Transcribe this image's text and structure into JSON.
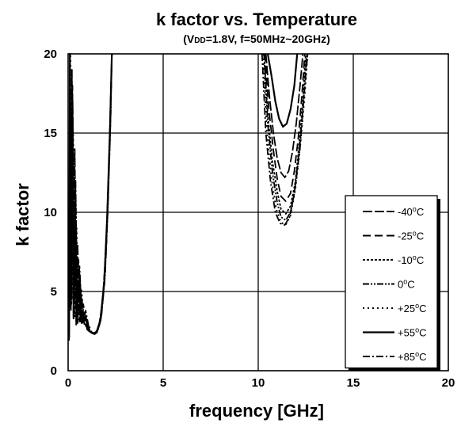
{
  "chart_data": {
    "type": "line",
    "title": "k factor vs. Temperature",
    "subtitle": {
      "prefix": "(V",
      "subscript": "DD",
      "suffix": "=1.8V, f=50MHz~20GHz)"
    },
    "xlabel": "frequency [GHz]",
    "ylabel": "k factor",
    "xlim": [
      0,
      20
    ],
    "ylim": [
      0,
      20
    ],
    "xticks": [
      "0",
      "5",
      "10",
      "15",
      "20"
    ],
    "yticks": [
      "0",
      "5",
      "10",
      "15",
      "20"
    ],
    "grid": true,
    "legend_position": "right-middle",
    "series": [
      {
        "name": "-40°C",
        "label": "-40",
        "unit": "oC",
        "dash": "12,3",
        "segments": [
          [
            [
              0.05,
              2.6
            ],
            [
              0.1,
              20
            ],
            [
              0.15,
              3.8
            ],
            [
              0.2,
              19
            ],
            [
              0.28,
              3.3
            ],
            [
              0.35,
              14
            ],
            [
              0.42,
              2.9
            ],
            [
              0.5,
              8
            ],
            [
              0.6,
              3.1
            ],
            [
              0.7,
              4.8
            ],
            [
              0.85,
              3.0
            ],
            [
              1.0,
              2.7
            ],
            [
              1.2,
              2.45
            ],
            [
              1.4,
              2.35
            ],
            [
              1.6,
              2.7
            ],
            [
              1.8,
              4.2
            ],
            [
              2.0,
              7.8
            ],
            [
              2.15,
              13
            ],
            [
              2.3,
              20
            ]
          ],
          [
            [
              10.4,
              20
            ],
            [
              10.6,
              17.2
            ],
            [
              10.8,
              15.0
            ],
            [
              11.0,
              13.4
            ],
            [
              11.2,
              12.5
            ],
            [
              11.4,
              12.2
            ],
            [
              11.6,
              12.6
            ],
            [
              11.8,
              13.8
            ],
            [
              12.0,
              15.6
            ],
            [
              12.2,
              18.0
            ],
            [
              12.35,
              20
            ]
          ]
        ]
      },
      {
        "name": "-25°C",
        "label": "-25",
        "unit": "oC",
        "dash": "10,5",
        "segments": [
          [
            [
              0.05,
              2.3
            ],
            [
              0.12,
              19
            ],
            [
              0.18,
              4.4
            ],
            [
              0.24,
              17
            ],
            [
              0.3,
              3.6
            ],
            [
              0.38,
              12
            ],
            [
              0.45,
              3.2
            ],
            [
              0.55,
              7
            ],
            [
              0.65,
              3.0
            ],
            [
              0.8,
              4.2
            ],
            [
              1.0,
              2.6
            ],
            [
              1.2,
              2.4
            ],
            [
              1.4,
              2.3
            ],
            [
              1.6,
              2.65
            ],
            [
              1.8,
              4.1
            ],
            [
              2.0,
              7.6
            ],
            [
              2.15,
              12.8
            ],
            [
              2.3,
              20
            ]
          ],
          [
            [
              10.35,
              20
            ],
            [
              10.55,
              16.6
            ],
            [
              10.8,
              13.9
            ],
            [
              11.0,
              12.1
            ],
            [
              11.2,
              11.0
            ],
            [
              11.45,
              10.7
            ],
            [
              11.7,
              11.2
            ],
            [
              11.9,
              12.6
            ],
            [
              12.1,
              14.6
            ],
            [
              12.3,
              17.4
            ],
            [
              12.45,
              20
            ]
          ]
        ]
      },
      {
        "name": "-10°C",
        "label": "-10",
        "unit": "oC",
        "dash": "3,2",
        "segments": [
          [
            [
              0.05,
              3.0
            ],
            [
              0.1,
              17
            ],
            [
              0.16,
              5.0
            ],
            [
              0.22,
              18
            ],
            [
              0.3,
              4.0
            ],
            [
              0.4,
              11
            ],
            [
              0.5,
              3.4
            ],
            [
              0.6,
              6.2
            ],
            [
              0.75,
              3.2
            ],
            [
              0.9,
              3.6
            ],
            [
              1.1,
              2.55
            ],
            [
              1.3,
              2.35
            ],
            [
              1.5,
              2.4
            ],
            [
              1.7,
              3.1
            ],
            [
              1.9,
              5.4
            ],
            [
              2.05,
              9.3
            ],
            [
              2.2,
              15
            ],
            [
              2.3,
              20
            ]
          ],
          [
            [
              10.3,
              20
            ],
            [
              10.5,
              16.2
            ],
            [
              10.75,
              13.2
            ],
            [
              11.0,
              11.3
            ],
            [
              11.2,
              10.2
            ],
            [
              11.45,
              9.9
            ],
            [
              11.7,
              10.4
            ],
            [
              11.95,
              11.9
            ],
            [
              12.15,
              14.2
            ],
            [
              12.35,
              17.1
            ],
            [
              12.5,
              20
            ]
          ]
        ]
      },
      {
        "name": "0°C",
        "label": "0",
        "unit": "oC",
        "dash": "8,2,2,2,2,2",
        "segments": [
          [
            [
              0.05,
              1.9
            ],
            [
              0.11,
              18
            ],
            [
              0.17,
              4.2
            ],
            [
              0.25,
              16
            ],
            [
              0.32,
              3.5
            ],
            [
              0.4,
              9.5
            ],
            [
              0.5,
              3.0
            ],
            [
              0.62,
              5.6
            ],
            [
              0.78,
              3.0
            ],
            [
              0.95,
              3.3
            ],
            [
              1.15,
              2.5
            ],
            [
              1.35,
              2.35
            ],
            [
              1.55,
              2.5
            ],
            [
              1.75,
              3.4
            ],
            [
              1.95,
              6.1
            ],
            [
              2.1,
              10.5
            ],
            [
              2.25,
              16.5
            ],
            [
              2.3,
              20
            ]
          ],
          [
            [
              10.3,
              20
            ],
            [
              10.5,
              15.6
            ],
            [
              10.75,
              12.5
            ],
            [
              11.0,
              10.6
            ],
            [
              11.2,
              9.7
            ],
            [
              11.45,
              9.5
            ],
            [
              11.7,
              10.0
            ],
            [
              11.95,
              11.6
            ],
            [
              12.2,
              14.1
            ],
            [
              12.4,
              17.3
            ],
            [
              12.55,
              20
            ]
          ]
        ]
      },
      {
        "name": "+25°C",
        "label": "+25",
        "unit": "oC",
        "dash": "2,4",
        "segments": [
          [
            [
              0.05,
              2.4
            ],
            [
              0.13,
              20
            ],
            [
              0.19,
              4.6
            ],
            [
              0.27,
              15
            ],
            [
              0.35,
              3.4
            ],
            [
              0.45,
              9
            ],
            [
              0.55,
              3.1
            ],
            [
              0.7,
              5.2
            ],
            [
              0.85,
              2.9
            ],
            [
              1.05,
              3.0
            ],
            [
              1.25,
              2.4
            ],
            [
              1.45,
              2.35
            ],
            [
              1.65,
              2.9
            ],
            [
              1.85,
              4.8
            ],
            [
              2.0,
              8.2
            ],
            [
              2.2,
              14.5
            ],
            [
              2.3,
              20
            ]
          ],
          [
            [
              10.25,
              20
            ],
            [
              10.45,
              15.2
            ],
            [
              10.7,
              12.1
            ],
            [
              10.95,
              10.2
            ],
            [
              11.2,
              9.35
            ],
            [
              11.45,
              9.2
            ],
            [
              11.7,
              9.8
            ],
            [
              11.95,
              11.4
            ],
            [
              12.2,
              14.0
            ],
            [
              12.45,
              17.4
            ],
            [
              12.6,
              20
            ]
          ]
        ]
      },
      {
        "name": "+55°C",
        "label": "+55",
        "unit": "oC",
        "dash": "",
        "segments": [
          [
            [
              0.05,
              2.1
            ],
            [
              0.09,
              20
            ],
            [
              0.14,
              4.0
            ],
            [
              0.21,
              16
            ],
            [
              0.29,
              3.3
            ],
            [
              0.37,
              10
            ],
            [
              0.46,
              3.0
            ],
            [
              0.58,
              5.8
            ],
            [
              0.72,
              3.0
            ],
            [
              0.9,
              3.4
            ],
            [
              1.1,
              2.5
            ],
            [
              1.3,
              2.35
            ],
            [
              1.5,
              2.45
            ],
            [
              1.7,
              3.2
            ],
            [
              1.9,
              5.6
            ],
            [
              2.05,
              9.6
            ],
            [
              2.2,
              15.2
            ],
            [
              2.3,
              20
            ]
          ],
          [
            [
              10.5,
              20
            ],
            [
              10.7,
              18.6
            ],
            [
              10.9,
              17.0
            ],
            [
              11.1,
              15.9
            ],
            [
              11.3,
              15.4
            ],
            [
              11.5,
              15.6
            ],
            [
              11.7,
              16.5
            ],
            [
              11.9,
              18.0
            ],
            [
              12.05,
              20
            ]
          ]
        ]
      },
      {
        "name": "+85°C",
        "label": "+85",
        "unit": "oC",
        "dash": "9,3,2,3",
        "segments": [
          [
            [
              0.05,
              2.7
            ],
            [
              0.1,
              19
            ],
            [
              0.15,
              4.8
            ],
            [
              0.23,
              18
            ],
            [
              0.31,
              3.7
            ],
            [
              0.39,
              12
            ],
            [
              0.48,
              3.2
            ],
            [
              0.6,
              6.6
            ],
            [
              0.74,
              3.1
            ],
            [
              0.92,
              3.8
            ],
            [
              1.12,
              2.55
            ],
            [
              1.32,
              2.35
            ],
            [
              1.52,
              2.4
            ],
            [
              1.72,
              3.2
            ],
            [
              1.92,
              5.6
            ],
            [
              2.08,
              9.9
            ],
            [
              2.22,
              15.6
            ],
            [
              2.3,
              20
            ]
          ],
          [
            [
              10.2,
              20
            ],
            [
              10.4,
              15.0
            ],
            [
              10.65,
              11.9
            ],
            [
              10.9,
              10.0
            ],
            [
              11.15,
              9.3
            ],
            [
              11.4,
              9.2
            ],
            [
              11.65,
              9.7
            ],
            [
              11.9,
              11.2
            ],
            [
              12.15,
              13.8
            ],
            [
              12.4,
              17.2
            ],
            [
              12.6,
              20
            ]
          ]
        ]
      }
    ]
  }
}
